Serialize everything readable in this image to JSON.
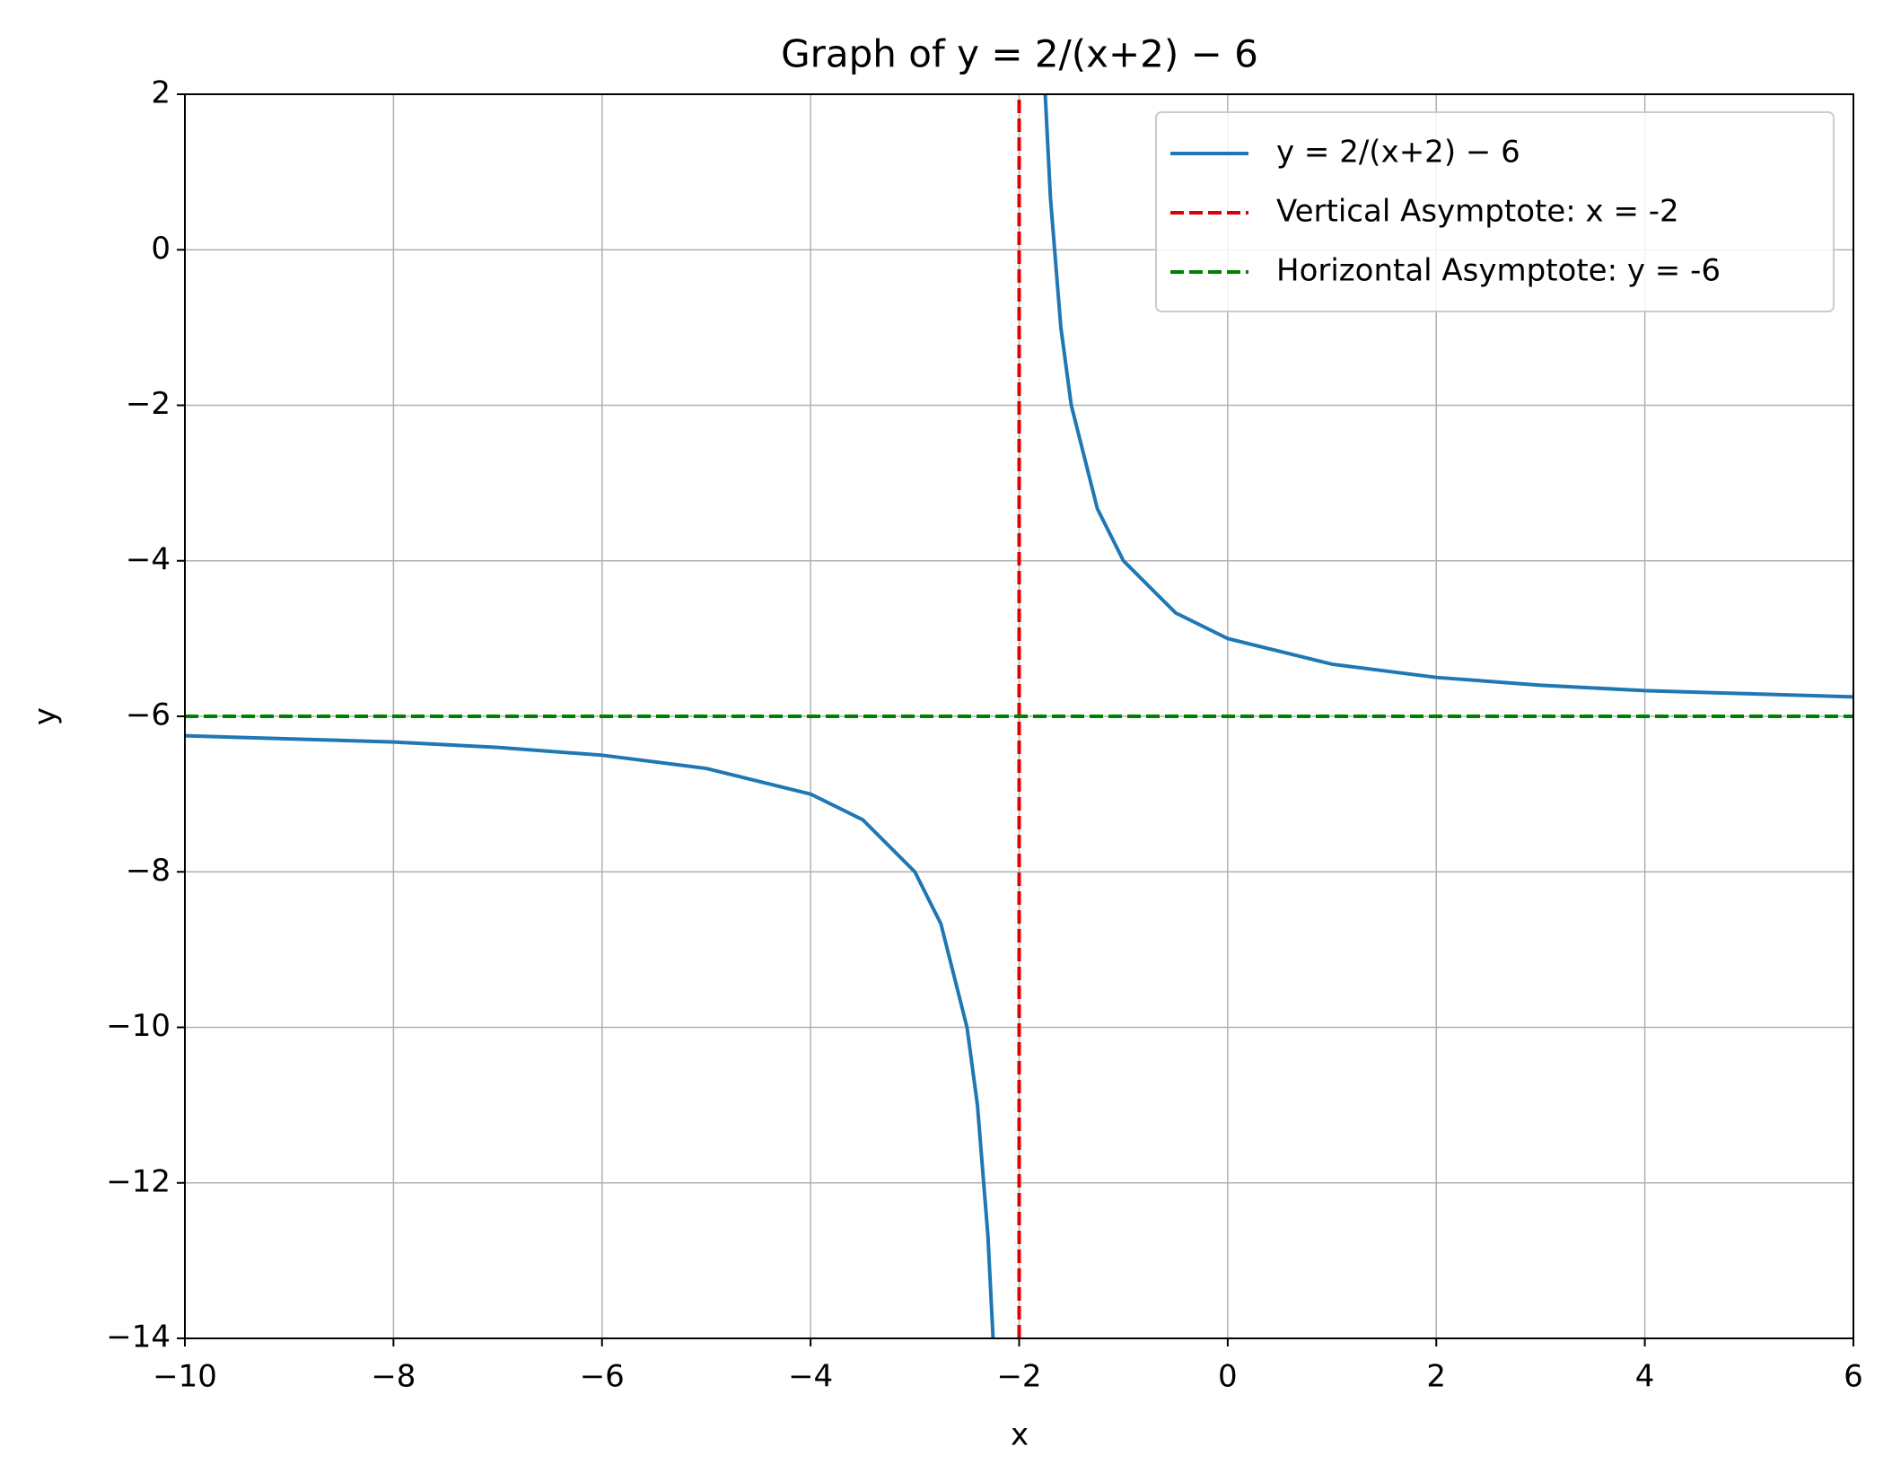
{
  "chart_data": {
    "type": "line",
    "title": "Graph of y = 2/(x+2) − 6",
    "x_label": "x",
    "y_label": "y",
    "xlim": [
      -10,
      6
    ],
    "ylim": [
      -14,
      2
    ],
    "xticks": [
      {
        "value": -10,
        "label": "−10"
      },
      {
        "value": -8,
        "label": "−8"
      },
      {
        "value": -6,
        "label": "−6"
      },
      {
        "value": -4,
        "label": "−4"
      },
      {
        "value": -2,
        "label": "−2"
      },
      0,
      2,
      4,
      6
    ],
    "yticks": [
      {
        "value": -14,
        "label": "−14"
      },
      {
        "value": -12,
        "label": "−12"
      },
      {
        "value": -10,
        "label": "−10"
      },
      {
        "value": -8,
        "label": "−8"
      },
      {
        "value": -6,
        "label": "−6"
      },
      {
        "value": -4,
        "label": "−4"
      },
      {
        "value": -2,
        "label": "−2"
      },
      0,
      2
    ],
    "grid": true,
    "legend": "upper right",
    "series": [
      {
        "name": "y = 2/(x+2) − 6",
        "color": "#1f77b4",
        "linestyle": "solid",
        "x": [
          -10,
          -9,
          -8,
          -7,
          -6,
          -5,
          -4,
          -3.5,
          -3,
          -2.75,
          -2.5,
          -2.4,
          -2.3,
          -2.25,
          -2,
          -1.75,
          -1.7,
          -1.6,
          -1.5,
          -1.25,
          -1,
          -0.5,
          0,
          1,
          2,
          3,
          4,
          5,
          6
        ],
        "values": [
          -6.25,
          -6.29,
          -6.33,
          -6.4,
          -6.5,
          -6.67,
          -7,
          -7.33,
          -8,
          -8.67,
          -10,
          -11,
          -12.67,
          -14,
          null,
          2,
          0.67,
          -1,
          -2,
          -3.33,
          -4,
          -4.67,
          -5,
          -5.33,
          -5.5,
          -5.6,
          -5.67,
          -5.71,
          -5.75
        ]
      },
      {
        "name": "Vertical Asymptote: x = -2",
        "color": "#e00000",
        "linestyle": "dashed",
        "x": [
          -2,
          -2
        ],
        "values": [
          -14,
          2
        ]
      },
      {
        "name": "Horizontal Asymptote: y = -6",
        "color": "#008000",
        "linestyle": "dashed",
        "x": [
          -10,
          6
        ],
        "values": [
          -6,
          -6
        ]
      }
    ]
  }
}
